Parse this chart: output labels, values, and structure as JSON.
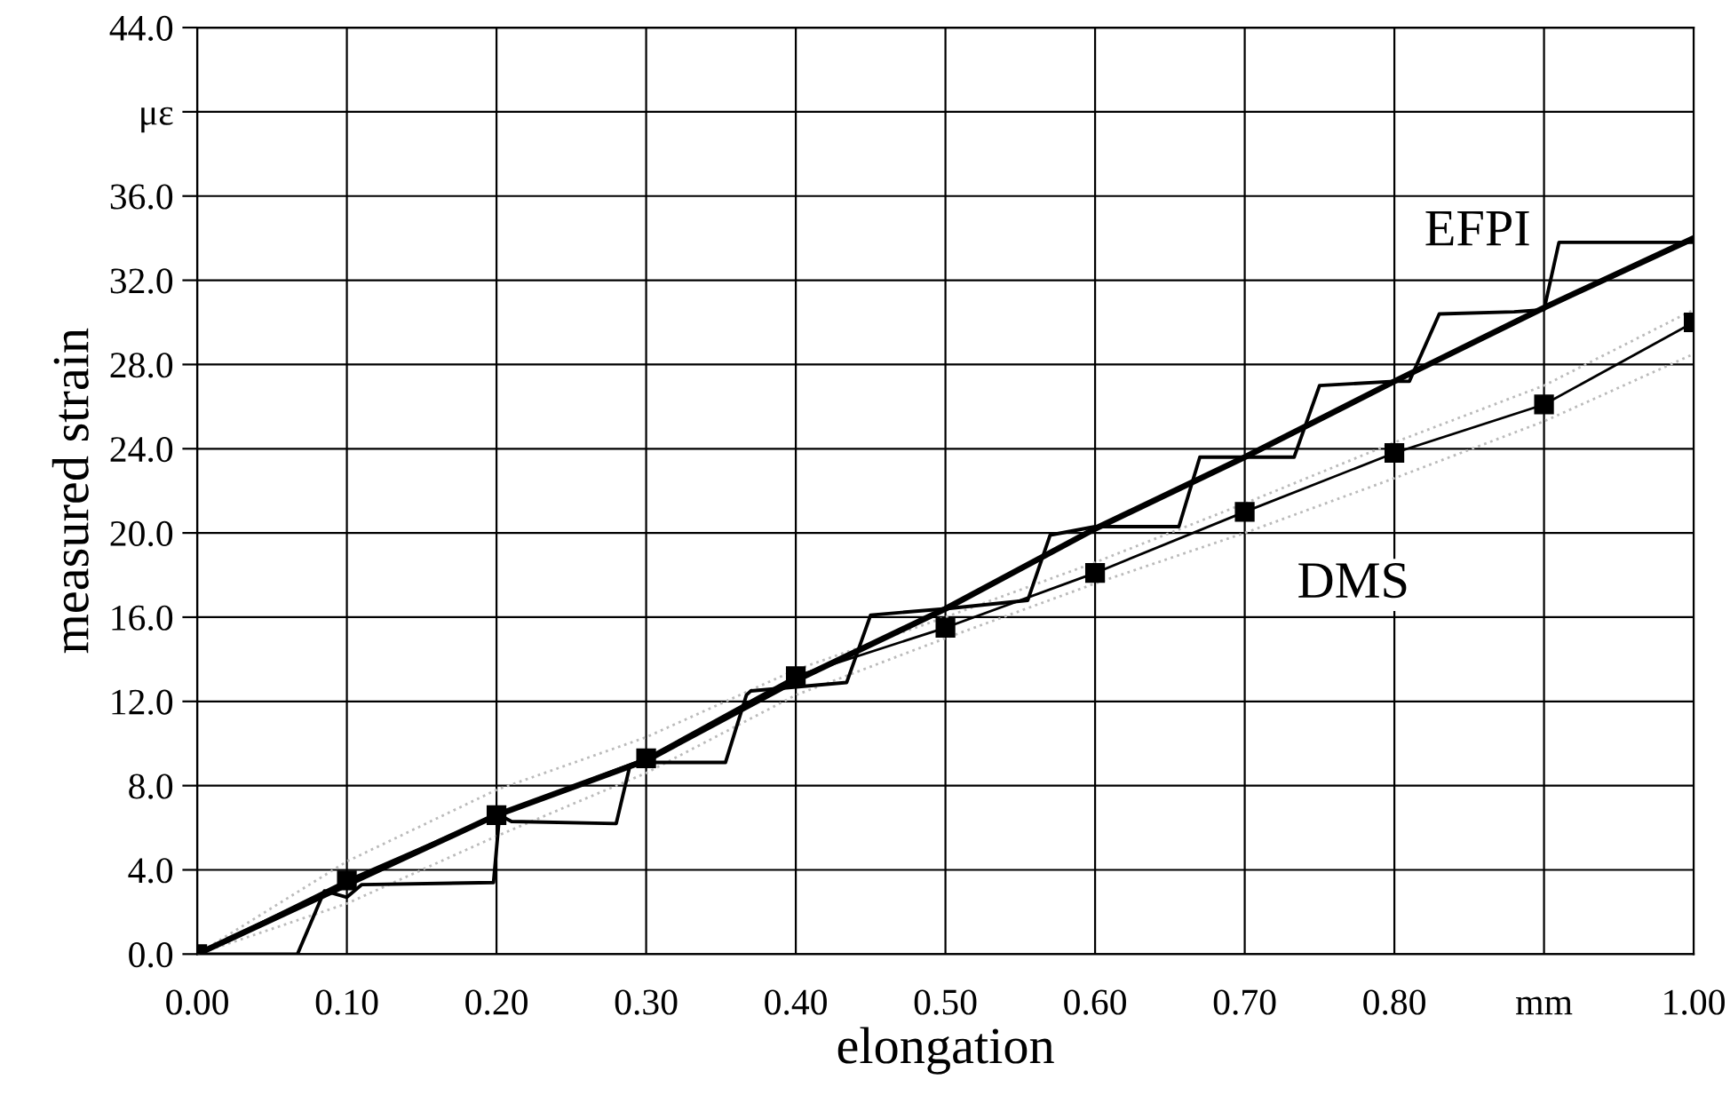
{
  "chart_data": {
    "type": "line",
    "xlabel": "elongation",
    "ylabel": "measured strain",
    "xlim": [
      0,
      1.0
    ],
    "ylim": [
      0,
      44
    ],
    "xticks": [
      {
        "value": 0,
        "label": "0.00"
      },
      {
        "value": 0.1,
        "label": "0.10"
      },
      {
        "value": 0.2,
        "label": "0.20"
      },
      {
        "value": 0.3,
        "label": "0.30"
      },
      {
        "value": 0.4,
        "label": "0.40"
      },
      {
        "value": 0.5,
        "label": "0.50"
      },
      {
        "value": 0.6,
        "label": "0.60"
      },
      {
        "value": 0.7,
        "label": "0.70"
      },
      {
        "value": 0.8,
        "label": "0.80"
      },
      {
        "value": 0.9,
        "label": "mm"
      },
      {
        "value": 1.0,
        "label": "1.00"
      }
    ],
    "yticks": [
      {
        "value": 0,
        "label": "0.0"
      },
      {
        "value": 4,
        "label": "4.0"
      },
      {
        "value": 8,
        "label": "8.0"
      },
      {
        "value": 12,
        "label": "12.0"
      },
      {
        "value": 16,
        "label": "16.0"
      },
      {
        "value": 20,
        "label": "20.0"
      },
      {
        "value": 24,
        "label": "24.0"
      },
      {
        "value": 28,
        "label": "28.0"
      },
      {
        "value": 32,
        "label": "32.0"
      },
      {
        "value": 36,
        "label": "36.0"
      },
      {
        "value": 40,
        "label": "με"
      },
      {
        "value": 44,
        "label": "44.0"
      }
    ],
    "grid": true,
    "legend": false,
    "series": [
      {
        "color": "#bbbbbb",
        "line_style": "dotted",
        "marker": "none",
        "x": [
          0,
          0.1,
          0.2,
          0.3,
          0.4,
          0.5,
          0.6,
          0.7,
          0.8,
          0.9,
          1.0
        ],
        "values": [
          0,
          4.4,
          7.8,
          10.3,
          13.5,
          16.0,
          18.6,
          21.4,
          24.3,
          27.0,
          30.6
        ]
      },
      {
        "color": "#bbbbbb",
        "line_style": "dotted",
        "marker": "none",
        "x": [
          0,
          0.1,
          0.2,
          0.3,
          0.4,
          0.5,
          0.6,
          0.7,
          0.8,
          0.9,
          1.0
        ],
        "values": [
          0,
          2.4,
          5.6,
          8.6,
          12.3,
          15.0,
          17.6,
          20.0,
          22.6,
          25.3,
          28.5
        ]
      },
      {
        "color": "#000000",
        "line_style": "solid",
        "marker": "square",
        "x": [
          0,
          0.1,
          0.2,
          0.3,
          0.4,
          0.5,
          0.6,
          0.7,
          0.8,
          0.9,
          1.0
        ],
        "values": [
          0,
          3.5,
          6.6,
          9.3,
          13.2,
          15.5,
          18.1,
          21.0,
          23.8,
          26.1,
          30.0
        ]
      },
      {
        "color": "#000000",
        "line_style": "solid",
        "marker": "none",
        "x": [
          0,
          0.067,
          0.085,
          0.1,
          0.11,
          0.198,
          0.202,
          0.21,
          0.28,
          0.289,
          0.3,
          0.353,
          0.367,
          0.37,
          0.434,
          0.45,
          0.5,
          0.555,
          0.57,
          0.6,
          0.656,
          0.67,
          0.733,
          0.75,
          0.8,
          0.81,
          0.83,
          0.88,
          0.9,
          0.91,
          1.0
        ],
        "values": [
          0,
          0,
          3.0,
          2.7,
          3.3,
          3.4,
          6.6,
          6.3,
          6.2,
          8.9,
          9.1,
          9.1,
          12.3,
          12.5,
          12.9,
          16.1,
          16.4,
          16.8,
          19.9,
          20.3,
          20.3,
          23.6,
          23.6,
          27.0,
          27.2,
          27.2,
          30.4,
          30.5,
          30.6,
          33.8,
          33.8
        ]
      },
      {
        "color": "#000000",
        "line_style": "solid",
        "marker": "none",
        "x": [
          0,
          0.1,
          0.2,
          0.3,
          0.4,
          0.5,
          0.6,
          0.7,
          0.8,
          0.9,
          1.0
        ],
        "values": [
          0,
          3.3,
          6.6,
          9.2,
          13.0,
          16.4,
          20.2,
          23.6,
          27.2,
          30.7,
          34.0
        ]
      }
    ],
    "annotations": [
      "EFPI",
      "DMS"
    ]
  }
}
